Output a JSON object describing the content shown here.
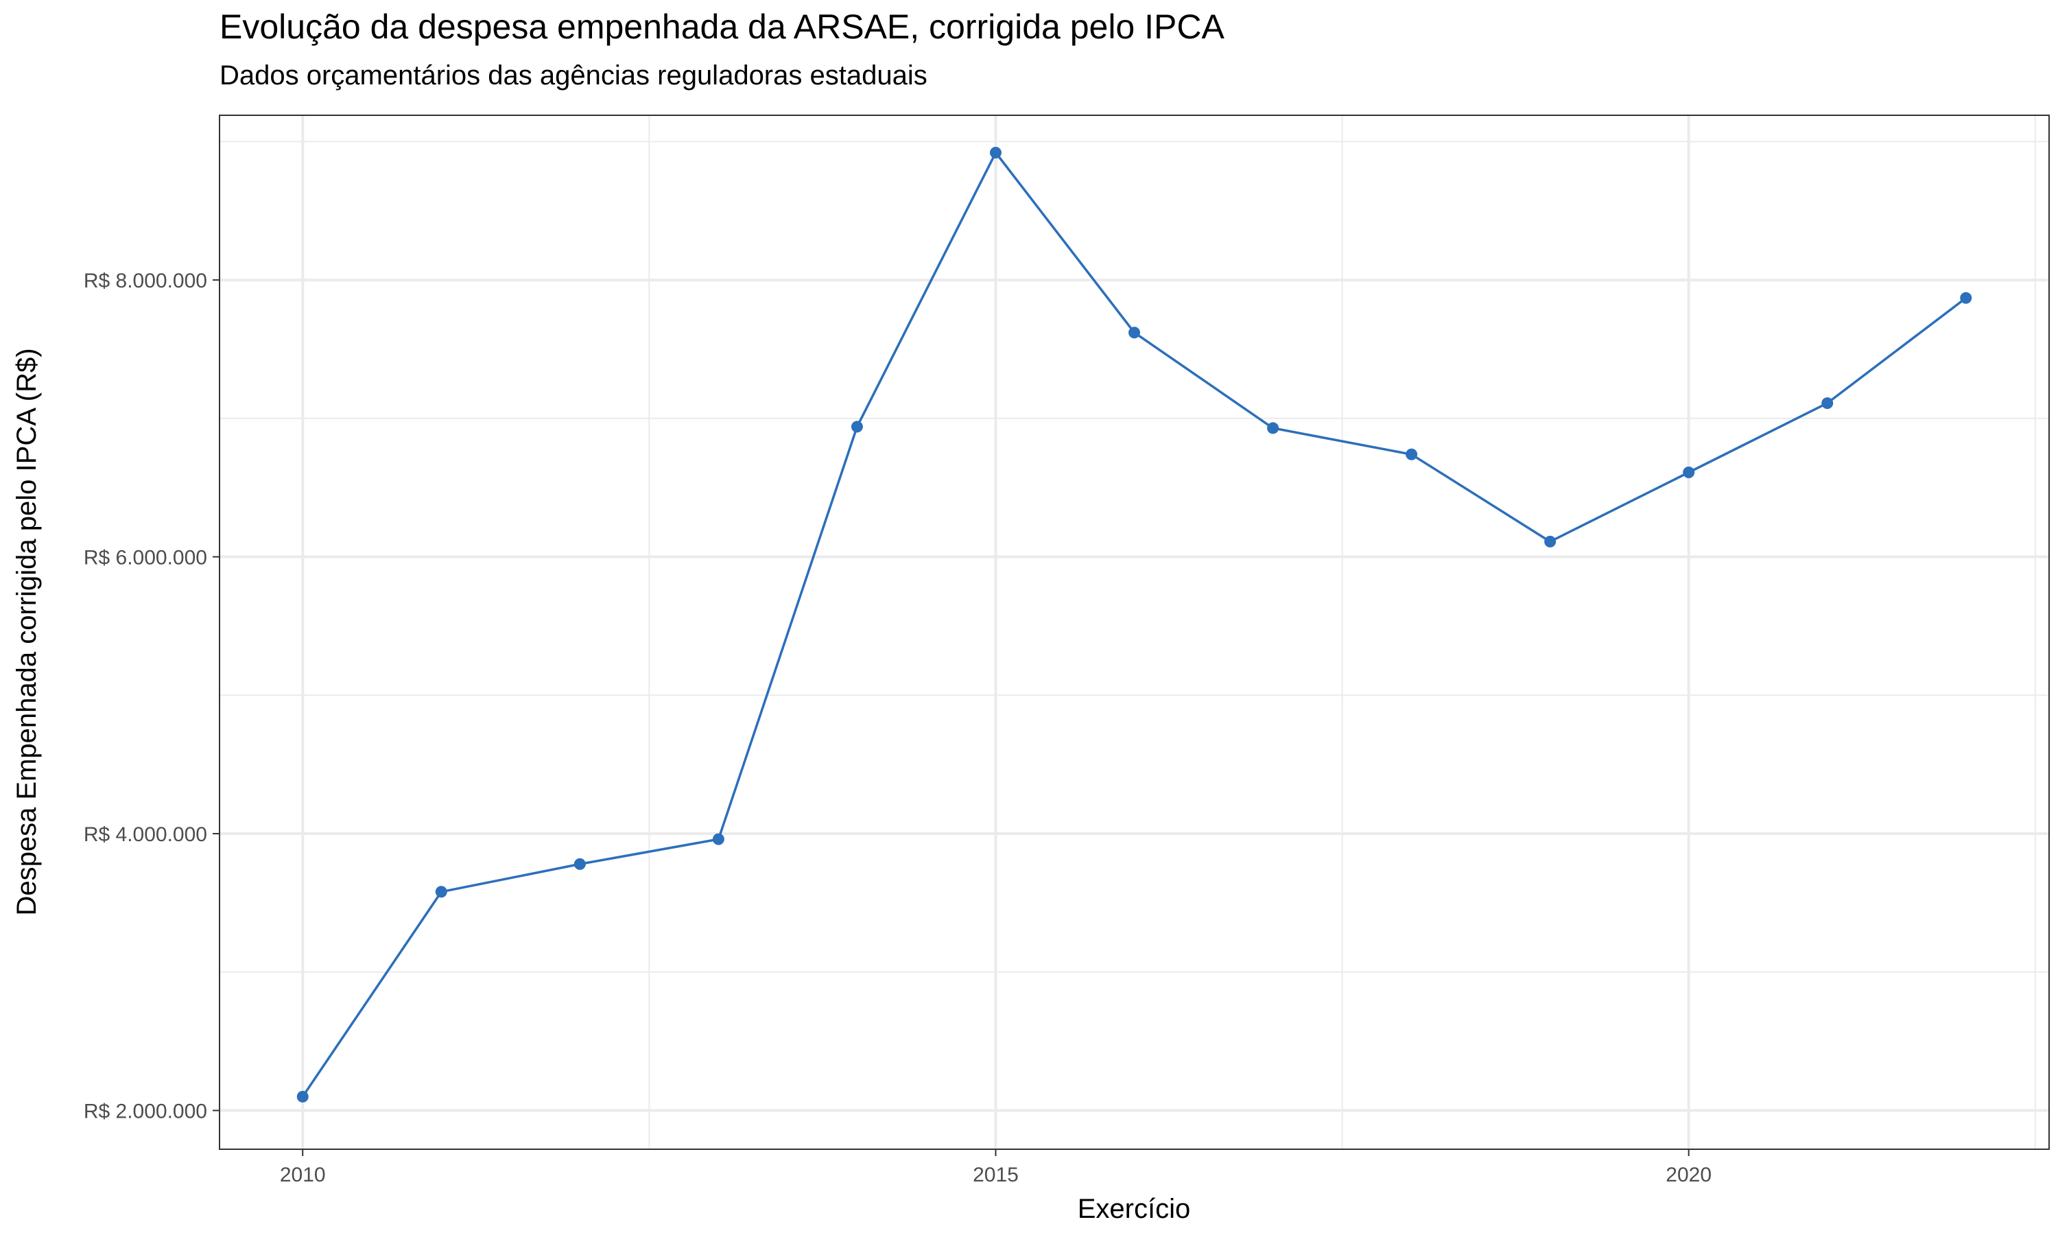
{
  "chart_data": {
    "type": "line",
    "title": "Evolução da despesa empenhada da ARSAE, corrigida pelo IPCA",
    "subtitle": "Dados orçamentários das agências reguladoras estaduais",
    "xlabel": "Exercício",
    "ylabel": "Despesa Empenhada corrigida pelo IPCA (R$)",
    "x": [
      2010,
      2011,
      2012,
      2013,
      2014,
      2015,
      2016,
      2017,
      2018,
      2019,
      2020,
      2021,
      2022
    ],
    "series": [
      {
        "values": [
          2100000,
          3580000,
          3780000,
          3960000,
          6940000,
          8920000,
          7620000,
          6930000,
          6740000,
          6110000,
          6610000,
          7110000,
          7870000
        ]
      }
    ],
    "xlim": [
      2009.4,
      2022.6
    ],
    "ylim": [
      1720000,
      9190000
    ],
    "x_ticks": [
      {
        "value": 2010,
        "label": "2010"
      },
      {
        "value": 2015,
        "label": "2015"
      },
      {
        "value": 2020,
        "label": "2020"
      }
    ],
    "y_ticks": [
      {
        "value": 2000000,
        "label": "R$ 2.000.000"
      },
      {
        "value": 4000000,
        "label": "R$ 4.000.000"
      },
      {
        "value": 6000000,
        "label": "R$ 6.000.000"
      },
      {
        "value": 8000000,
        "label": "R$ 8.000.000"
      }
    ],
    "x_minor_ticks": [
      2012.5,
      2017.5,
      2022.5
    ],
    "y_minor_ticks": [
      3000000,
      5000000,
      7000000,
      9000000
    ],
    "grid": true,
    "legend": "none",
    "colors": {
      "line": "#2C6FBB",
      "point": "#2C6FBB",
      "grid": "#EBEBEB",
      "panel_border": "#333333"
    }
  }
}
